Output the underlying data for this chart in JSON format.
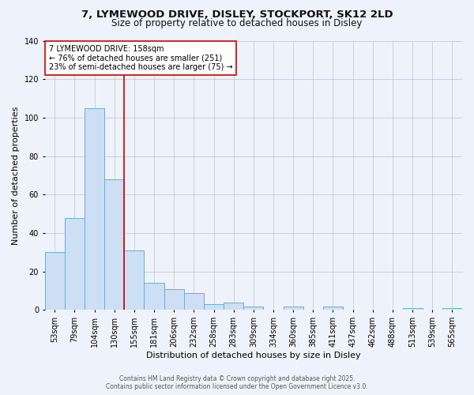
{
  "title_line1": "7, LYMEWOOD DRIVE, DISLEY, STOCKPORT, SK12 2LD",
  "title_line2": "Size of property relative to detached houses in Disley",
  "xlabel": "Distribution of detached houses by size in Disley",
  "ylabel": "Number of detached properties",
  "categories": [
    "53sqm",
    "79sqm",
    "104sqm",
    "130sqm",
    "155sqm",
    "181sqm",
    "206sqm",
    "232sqm",
    "258sqm",
    "283sqm",
    "309sqm",
    "334sqm",
    "360sqm",
    "385sqm",
    "411sqm",
    "437sqm",
    "462sqm",
    "488sqm",
    "513sqm",
    "539sqm",
    "565sqm"
  ],
  "values": [
    30,
    48,
    105,
    68,
    31,
    14,
    11,
    9,
    3,
    4,
    2,
    0,
    2,
    0,
    2,
    0,
    0,
    0,
    1,
    0,
    1
  ],
  "bar_color": "#ccdff5",
  "bar_edge_color": "#6baed6",
  "ylim": [
    0,
    140
  ],
  "yticks": [
    0,
    20,
    40,
    60,
    80,
    100,
    120,
    140
  ],
  "vline_index": 4,
  "vline_color": "#cc0000",
  "annotation_line1": "7 LYMEWOOD DRIVE: 158sqm",
  "annotation_line2": "← 76% of detached houses are smaller (251)",
  "annotation_line3": "23% of semi-detached houses are larger (75) →",
  "annotation_box_color": "#ffffff",
  "annotation_box_edge": "#cc0000",
  "footer_line1": "Contains HM Land Registry data © Crown copyright and database right 2025.",
  "footer_line2": "Contains public sector information licensed under the Open Government Licence v3.0.",
  "background_color": "#eef2fb",
  "grid_color": "#b0b8d0",
  "title1_fontsize": 9.5,
  "title2_fontsize": 8.5,
  "axis_label_fontsize": 8,
  "tick_fontsize": 7,
  "annotation_fontsize": 7,
  "footer_fontsize": 5.5
}
